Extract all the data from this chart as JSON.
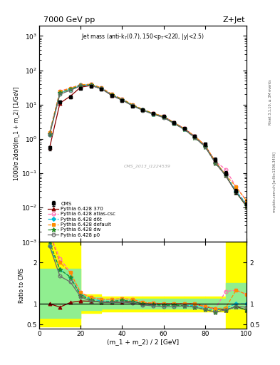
{
  "title_left": "7000 GeV pp",
  "title_right": "Z+Jet",
  "plot_title": "Jet mass (anti-k$_T$(0.7), 150<p$_T$<220, |y|<2.5)",
  "watermark": "CMS_2013_I1224539",
  "xlabel": "(m_1 + m_2) / 2 [GeV]",
  "ylabel_main": "1000/σ 2dσ/d(m_1 + m_2) [1/GeV]",
  "ylabel_ratio": "Ratio to CMS",
  "rivet_label": "Rivet 3.1.10, ≥ 3M events",
  "mcplots_label": "mcplots.cern.ch [arXiv:1306.3436]",
  "x_data": [
    5,
    10,
    15,
    20,
    25,
    30,
    35,
    40,
    45,
    50,
    55,
    60,
    65,
    70,
    75,
    80,
    85,
    90,
    95,
    100
  ],
  "cms_y": [
    0.55,
    12.0,
    17.0,
    30.0,
    34.0,
    28.0,
    18.0,
    13.0,
    9.0,
    7.0,
    5.5,
    4.5,
    3.0,
    2.0,
    1.2,
    0.7,
    0.25,
    0.1,
    0.03,
    0.013
  ],
  "cms_yerr": [
    0.08,
    1.0,
    1.5,
    2.0,
    2.5,
    2.0,
    1.2,
    0.8,
    0.6,
    0.5,
    0.4,
    0.3,
    0.25,
    0.18,
    0.12,
    0.08,
    0.03,
    0.015,
    0.005,
    0.003
  ],
  "py370_y": [
    0.55,
    11.0,
    17.5,
    32.0,
    36.0,
    29.0,
    18.5,
    13.5,
    9.5,
    7.0,
    5.5,
    4.5,
    3.0,
    2.0,
    1.2,
    0.65,
    0.22,
    0.085,
    0.028,
    0.011
  ],
  "py_atlascsc_y": [
    1.5,
    25.0,
    30.0,
    38.0,
    39.0,
    31.0,
    20.0,
    14.5,
    10.0,
    7.2,
    5.6,
    4.5,
    3.0,
    2.0,
    1.2,
    0.65,
    0.22,
    0.13,
    0.04,
    0.016
  ],
  "py_d6t_y": [
    1.3,
    22.0,
    28.0,
    37.0,
    38.0,
    30.0,
    19.0,
    14.0,
    9.5,
    7.0,
    5.4,
    4.3,
    2.9,
    1.9,
    1.15,
    0.62,
    0.21,
    0.09,
    0.03,
    0.013
  ],
  "py_default_y": [
    1.5,
    24.0,
    30.0,
    38.0,
    39.0,
    31.0,
    20.0,
    14.5,
    10.0,
    7.2,
    5.6,
    4.5,
    3.0,
    2.0,
    1.2,
    0.65,
    0.22,
    0.09,
    0.04,
    0.016
  ],
  "py_dw_y": [
    1.4,
    22.0,
    28.0,
    36.0,
    37.0,
    29.0,
    19.0,
    14.0,
    9.5,
    7.0,
    5.4,
    4.3,
    2.9,
    1.9,
    1.1,
    0.6,
    0.2,
    0.085,
    0.028,
    0.011
  ],
  "py_p0_y": [
    1.3,
    20.0,
    26.0,
    35.0,
    36.0,
    29.0,
    18.5,
    13.5,
    9.2,
    6.8,
    5.2,
    4.2,
    2.8,
    1.9,
    1.1,
    0.6,
    0.2,
    0.085,
    0.028,
    0.012
  ],
  "ratio_py370": [
    1.0,
    0.92,
    1.03,
    1.07,
    1.06,
    1.04,
    1.03,
    1.04,
    1.06,
    1.0,
    1.0,
    1.0,
    1.0,
    1.0,
    1.0,
    0.93,
    0.88,
    0.85,
    0.93,
    0.85
  ],
  "ratio_atlascsc": [
    2.7,
    2.1,
    1.76,
    1.27,
    1.15,
    1.11,
    1.11,
    1.12,
    1.11,
    1.03,
    1.02,
    1.0,
    1.0,
    1.0,
    1.0,
    0.93,
    0.88,
    1.3,
    1.33,
    1.23
  ],
  "ratio_d6t": [
    2.4,
    1.83,
    1.65,
    1.23,
    1.12,
    1.07,
    1.06,
    1.08,
    1.06,
    1.0,
    0.98,
    0.96,
    0.97,
    0.95,
    0.96,
    0.89,
    0.84,
    0.9,
    1.0,
    1.0
  ],
  "ratio_default": [
    2.7,
    2.0,
    1.76,
    1.27,
    1.15,
    1.11,
    1.11,
    1.12,
    1.11,
    1.03,
    1.02,
    1.0,
    1.0,
    1.0,
    1.0,
    0.93,
    0.88,
    0.9,
    1.33,
    1.23
  ],
  "ratio_dw": [
    2.5,
    1.83,
    1.65,
    1.2,
    1.09,
    1.04,
    1.06,
    1.08,
    1.06,
    1.0,
    0.98,
    0.96,
    0.97,
    0.95,
    0.92,
    0.86,
    0.8,
    0.85,
    0.93,
    0.85
  ],
  "ratio_p0": [
    2.4,
    1.67,
    1.53,
    1.17,
    1.06,
    1.04,
    1.03,
    1.04,
    1.02,
    0.97,
    0.95,
    0.93,
    0.93,
    0.95,
    0.92,
    0.86,
    0.8,
    0.85,
    0.93,
    0.92
  ],
  "band_x_edges": [
    0,
    10,
    20,
    30,
    40,
    50,
    60,
    70,
    80,
    90,
    100
  ],
  "band_yellow_low": [
    0.45,
    0.45,
    0.78,
    0.82,
    0.82,
    0.82,
    0.82,
    0.82,
    0.82,
    0.4,
    0.4
  ],
  "band_yellow_high": [
    2.5,
    2.5,
    1.22,
    1.18,
    1.18,
    1.18,
    1.18,
    1.18,
    1.18,
    2.5,
    2.5
  ],
  "band_green_low": [
    0.65,
    0.65,
    0.85,
    0.88,
    0.88,
    0.88,
    0.88,
    0.88,
    0.88,
    0.88,
    0.88
  ],
  "band_green_high": [
    1.85,
    1.85,
    1.15,
    1.12,
    1.12,
    1.12,
    1.12,
    1.12,
    1.12,
    1.5,
    1.5
  ],
  "color_cms": "#000000",
  "color_py370": "#8b0000",
  "color_atlascsc": "#ff69b4",
  "color_d6t": "#00bcd4",
  "color_default": "#ff8c00",
  "color_dw": "#228b22",
  "color_p0": "#696969",
  "ylim_main": [
    0.001,
    2000
  ],
  "ylim_ratio": [
    0.4,
    2.5
  ],
  "xlim": [
    0,
    100
  ]
}
